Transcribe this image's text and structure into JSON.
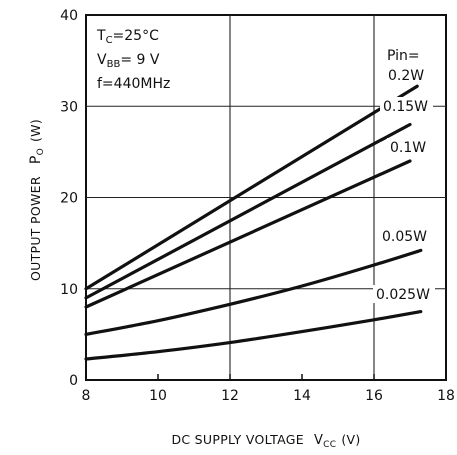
{
  "chart_data": {
    "type": "line",
    "xlabel": "DC SUPPLY VOLTAGE",
    "xlabel_symbol": "V",
    "xlabel_sub": "CC",
    "xlabel_unit": "(V)",
    "ylabel": "OUTPUT POWER",
    "ylabel_symbol": "P",
    "ylabel_sub": "O",
    "ylabel_unit": "(W)",
    "xlim": [
      8,
      18
    ],
    "ylim": [
      0,
      40
    ],
    "x_ticks": [
      "8",
      "10",
      "12",
      "14",
      "16",
      "18"
    ],
    "y_ticks": [
      "0",
      "10",
      "20",
      "30",
      "40"
    ],
    "grid": true,
    "conditions": {
      "tc_symbol": "T",
      "tc_sub": "C",
      "tc_value": "=25°C",
      "vbb_symbol": "V",
      "vbb_sub": "BB",
      "vbb_value": "= 9 V",
      "f_text": "f=440MHz"
    },
    "legend_title": "Pin=",
    "series": [
      {
        "name": "0.2W",
        "x": [
          8,
          17.2
        ],
        "y": [
          10.0,
          32.2
        ]
      },
      {
        "name": "0.15W",
        "x": [
          8,
          17.0
        ],
        "y": [
          9.0,
          28.0
        ]
      },
      {
        "name": "0.1W",
        "x": [
          8,
          17.0
        ],
        "y": [
          8.0,
          24.0
        ]
      },
      {
        "name": "0.05W",
        "x": [
          8,
          10,
          12,
          14,
          16,
          17.3
        ],
        "y": [
          5.0,
          6.5,
          8.3,
          10.3,
          12.6,
          14.2
        ]
      },
      {
        "name": "0.025W",
        "x": [
          8,
          10,
          12,
          14,
          16,
          17.3
        ],
        "y": [
          2.3,
          3.1,
          4.1,
          5.3,
          6.6,
          7.5
        ]
      }
    ]
  }
}
